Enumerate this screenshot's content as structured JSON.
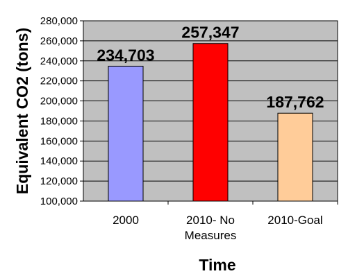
{
  "colors": {
    "plot_background": "#c0c0c0",
    "gridline": "#000000",
    "axis": "#000000"
  },
  "chart_data": {
    "type": "bar",
    "categories": [
      [
        "2000"
      ],
      [
        "2010- No",
        "Measures"
      ],
      [
        "2010-Goal"
      ]
    ],
    "values": [
      234703,
      257347,
      187762
    ],
    "data_labels": [
      "234,703",
      "257,347",
      "187,762"
    ],
    "bar_colors": [
      "#9999ff",
      "#ff0000",
      "#ffcc99"
    ],
    "title": "",
    "xlabel": "Time",
    "ylabel": "Equivalent CO2 (tons)",
    "ylim": [
      100000,
      280000
    ],
    "ytick_step": 20000,
    "ytick_labels": [
      "100,000",
      "120,000",
      "140,000",
      "160,000",
      "180,000",
      "200,000",
      "220,000",
      "240,000",
      "260,000",
      "280,000"
    ],
    "grid": true,
    "legend": "none"
  }
}
